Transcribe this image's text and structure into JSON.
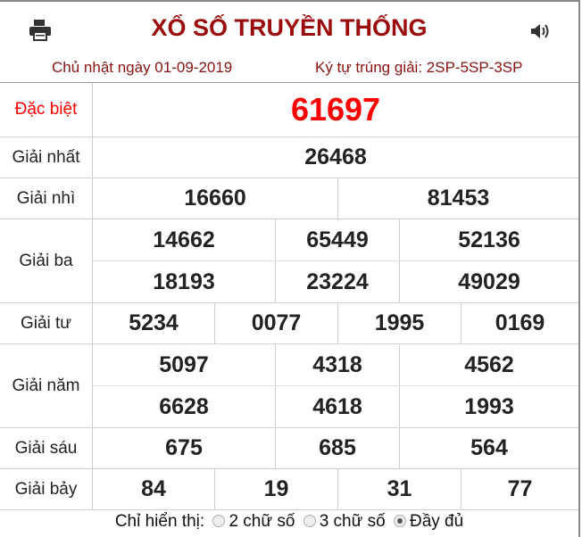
{
  "header": {
    "title": "XỔ SỐ TRUYỀN THỐNG",
    "date": "Chủ nhật ngày 01-09-2019",
    "codes": "Ký tự trúng giải: 2SP-5SP-3SP",
    "icons": [
      "printer-icon",
      "speaker-icon"
    ]
  },
  "colors": {
    "title": "#9b0b0b",
    "special": "#ff0000"
  },
  "prizes": {
    "special": {
      "label": "Đặc biệt",
      "numbers": [
        "61697"
      ]
    },
    "first": {
      "label": "Giải nhất",
      "numbers": [
        "26468"
      ]
    },
    "second": {
      "label": "Giải nhì",
      "numbers": [
        "16660",
        "81453"
      ]
    },
    "third": {
      "label": "Giải ba",
      "numbers": [
        "14662",
        "65449",
        "52136",
        "18193",
        "23224",
        "49029"
      ]
    },
    "fourth": {
      "label": "Giải tư",
      "numbers": [
        "5234",
        "0077",
        "1995",
        "0169"
      ]
    },
    "fifth": {
      "label": "Giải năm",
      "numbers": [
        "5097",
        "4318",
        "4562",
        "6628",
        "4618",
        "1993"
      ]
    },
    "sixth": {
      "label": "Giải sáu",
      "numbers": [
        "675",
        "685",
        "564"
      ]
    },
    "seventh": {
      "label": "Giải bảy",
      "numbers": [
        "84",
        "19",
        "31",
        "77"
      ]
    }
  },
  "footer": {
    "label": "Chỉ hiển thị:",
    "options": [
      "2 chữ số",
      "3 chữ số",
      "Đầy đủ"
    ],
    "selected": "Đầy đủ"
  }
}
